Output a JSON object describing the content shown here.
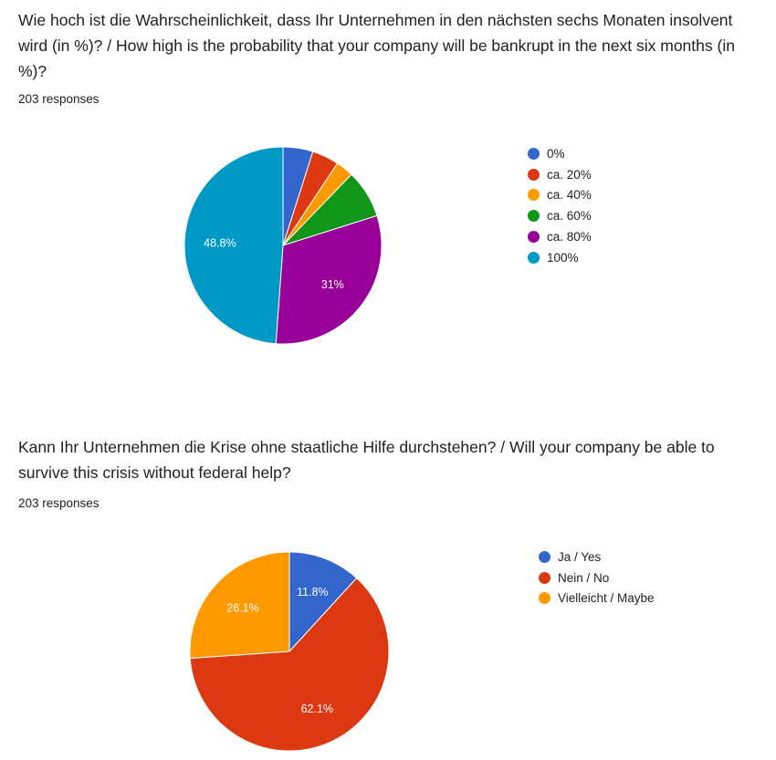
{
  "chart_data": [
    {
      "type": "pie",
      "title": "Wie hoch ist die Wahrscheinlichkeit, dass Ihr Unternehmen in den nächsten sechs Monaten insolvent wird (in %)? / How high is the probability that your company will be bankrupt in the next six months (in %)?",
      "subtitle": "203 responses",
      "categories": [
        "0%",
        "ca. 20%",
        "ca. 40%",
        "ca. 60%",
        "ca. 80%",
        "100%"
      ],
      "values": [
        4.9,
        4.4,
        2.9,
        7.9,
        31,
        48.8
      ],
      "data_labels": [
        "",
        "",
        "",
        "",
        "31%",
        "48.8%"
      ],
      "colors": [
        "#3366cc",
        "#dc3912",
        "#ff9900",
        "#109618",
        "#990099",
        "#0099c6"
      ],
      "legend": "right"
    },
    {
      "type": "pie",
      "title": "Kann Ihr Unternehmen die Krise ohne staatliche Hilfe durchstehen? / Will your company be able to survive this crisis without federal help?",
      "subtitle": "203 responses",
      "categories": [
        "Ja / Yes",
        "Nein / No",
        "Vielleicht / Maybe"
      ],
      "values": [
        11.8,
        62.1,
        26.1
      ],
      "data_labels": [
        "11.8%",
        "62.1%",
        "26.1%"
      ],
      "colors": [
        "#3366cc",
        "#dc3912",
        "#ff9900"
      ],
      "legend": "right"
    }
  ]
}
